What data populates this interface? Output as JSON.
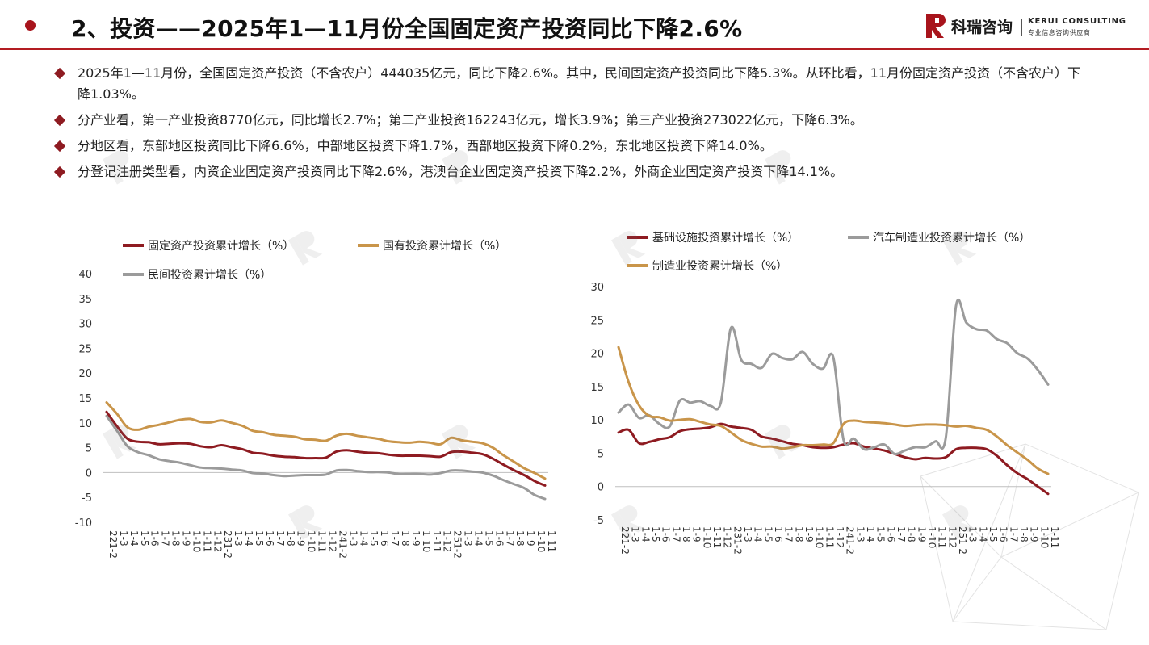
{
  "header": {
    "title": "2、投资——2025年1—11月份全国固定资产投资同比下降2.6%",
    "logo": {
      "cn": "科瑞咨询",
      "en": "KERUI CONSULTING",
      "sub": "专业信息咨询供应商"
    }
  },
  "bullets": [
    "2025年1—11月份，全国固定资产投资（不含农户）444035亿元，同比下降2.6%。其中，民间固定资产投资同比下降5.3%。从环比看，11月份固定资产投资（不含农户）下降1.03%。",
    "分产业看，第一产业投资8770亿元，同比增长2.7%；第二产业投资162243亿元，增长3.9%；第三产业投资273022亿元，下降6.3%。",
    "分地区看，东部地区投资同比下降6.6%，中部地区投资下降1.7%，西部地区投资下降0.2%，东北地区投资下降14.0%。",
    "分登记注册类型看，内资企业固定资产投资同比下降2.6%，港澳台企业固定资产投资下降2.2%，外商企业固定资产投资下降14.1%。"
  ],
  "colors": {
    "accent": "#a8141c",
    "dark_red": "#8e1b21",
    "gold": "#c9954a",
    "gray": "#9b9b9b"
  },
  "chart_data": [
    {
      "type": "line",
      "categories": [
        "22 1-2",
        "1-3",
        "1-4",
        "1-5",
        "1-6",
        "1-7",
        "1-8",
        "1-9",
        "1-10",
        "1-11",
        "1-12",
        "23 1-2",
        "1-3",
        "1-4",
        "1-5",
        "1-6",
        "1-7",
        "1-8",
        "1-9",
        "1-10",
        "1-11",
        "1-12",
        "24 1-2",
        "1-3",
        "1-4",
        "1-5",
        "1-6",
        "1-7",
        "1-8",
        "1-9",
        "1-10",
        "1-11",
        "1-12",
        "25 1-2",
        "1-3",
        "1-4",
        "1-5",
        "1-6",
        "1-7",
        "1-8",
        "1-9",
        "1-10",
        "1-11"
      ],
      "series": [
        {
          "name": "固定资产投资累计增长（%）",
          "color": "#8e1b21",
          "values": [
            12.2,
            9.3,
            6.8,
            6.2,
            6.1,
            5.7,
            5.8,
            5.9,
            5.8,
            5.3,
            5.1,
            5.5,
            5.1,
            4.7,
            4.0,
            3.8,
            3.4,
            3.2,
            3.1,
            2.9,
            2.9,
            3.0,
            4.2,
            4.5,
            4.2,
            4.0,
            3.9,
            3.6,
            3.4,
            3.4,
            3.4,
            3.3,
            3.2,
            4.1,
            4.2,
            4.0,
            3.7,
            2.8,
            1.6,
            0.5,
            -0.5,
            -1.7,
            -2.6
          ]
        },
        {
          "name": "国有投资累计增长（%）",
          "color": "#c9954a",
          "values": [
            14.1,
            11.8,
            9.1,
            8.6,
            9.2,
            9.6,
            10.1,
            10.6,
            10.8,
            10.2,
            10.1,
            10.5,
            10.0,
            9.4,
            8.4,
            8.1,
            7.6,
            7.4,
            7.2,
            6.7,
            6.6,
            6.4,
            7.4,
            7.8,
            7.4,
            7.1,
            6.8,
            6.3,
            6.1,
            6.0,
            6.2,
            6.0,
            5.7,
            7.0,
            6.5,
            6.2,
            5.9,
            5.0,
            3.5,
            2.2,
            0.9,
            -0.1,
            -1.2
          ]
        },
        {
          "name": "民间投资累计增长（%）",
          "color": "#9b9b9b",
          "values": [
            11.4,
            8.4,
            5.3,
            4.1,
            3.5,
            2.7,
            2.3,
            2.0,
            1.5,
            1.0,
            0.9,
            0.8,
            0.6,
            0.4,
            -0.1,
            -0.2,
            -0.5,
            -0.7,
            -0.6,
            -0.5,
            -0.5,
            -0.4,
            0.4,
            0.5,
            0.3,
            0.1,
            0.1,
            0.0,
            -0.3,
            -0.3,
            -0.3,
            -0.4,
            -0.1,
            0.4,
            0.4,
            0.2,
            0.0,
            -0.6,
            -1.5,
            -2.3,
            -3.1,
            -4.5,
            -5.3
          ]
        }
      ],
      "ylim": [
        -10,
        40
      ],
      "yticks": [
        -10,
        -5,
        0,
        5,
        10,
        15,
        20,
        25,
        30,
        35,
        40
      ],
      "legend": "top"
    },
    {
      "type": "line",
      "categories": [
        "22 1-2",
        "1-3",
        "1-4",
        "1-5",
        "1-6",
        "1-7",
        "1-8",
        "1-9",
        "1-10",
        "1-11",
        "1-12",
        "23 1-2",
        "1-3",
        "1-4",
        "1-5",
        "1-6",
        "1-7",
        "1-8",
        "1-9",
        "1-10",
        "1-11",
        "1-12",
        "24 1-2",
        "1-3",
        "1-4",
        "1-5",
        "1-6",
        "1-7",
        "1-8",
        "1-9",
        "1-10",
        "1-11",
        "1-12",
        "25 1-2",
        "1-3",
        "1-4",
        "1-5",
        "1-6",
        "1-7",
        "1-8",
        "1-9",
        "1-10",
        "1-11"
      ],
      "series": [
        {
          "name": "基础设施投资累计增长（%）",
          "color": "#8e1b21",
          "values": [
            8.1,
            8.5,
            6.5,
            6.7,
            7.1,
            7.4,
            8.3,
            8.6,
            8.7,
            8.9,
            9.4,
            9.0,
            8.8,
            8.5,
            7.5,
            7.2,
            6.8,
            6.4,
            6.2,
            5.9,
            5.8,
            5.9,
            6.3,
            6.5,
            6.0,
            5.7,
            5.4,
            4.9,
            4.4,
            4.1,
            4.3,
            4.2,
            4.4,
            5.6,
            5.8,
            5.8,
            5.6,
            4.6,
            3.2,
            2.0,
            1.1,
            0.0,
            -1.1
          ]
        },
        {
          "name": "汽车制造业投资累计增长（%）",
          "color": "#9b9b9b",
          "values": [
            11.1,
            12.3,
            10.3,
            10.7,
            9.4,
            9.0,
            12.9,
            12.6,
            12.8,
            12.1,
            12.6,
            23.8,
            19.0,
            18.4,
            17.8,
            19.9,
            19.3,
            19.1,
            20.2,
            18.4,
            17.7,
            19.4,
            7.0,
            7.2,
            5.6,
            5.9,
            6.3,
            4.9,
            5.4,
            5.9,
            5.9,
            6.8,
            7.3,
            27.1,
            24.6,
            23.6,
            23.4,
            22.1,
            21.5,
            20.0,
            19.2,
            17.5,
            15.3
          ]
        },
        {
          "name": "制造业投资累计增长（%）",
          "color": "#c9954a",
          "values": [
            20.9,
            15.6,
            12.2,
            10.6,
            10.4,
            9.9,
            10.0,
            10.1,
            9.7,
            9.3,
            9.1,
            8.1,
            7.0,
            6.4,
            6.0,
            6.0,
            5.7,
            5.9,
            6.2,
            6.2,
            6.3,
            6.5,
            9.4,
            9.9,
            9.7,
            9.6,
            9.5,
            9.3,
            9.1,
            9.2,
            9.3,
            9.3,
            9.2,
            9.0,
            9.1,
            8.8,
            8.5,
            7.5,
            6.2,
            5.1,
            4.0,
            2.7,
            1.9
          ]
        }
      ],
      "ylim": [
        -5,
        30
      ],
      "yticks": [
        -5,
        0,
        5,
        10,
        15,
        20,
        25,
        30
      ],
      "legend": "top"
    }
  ]
}
